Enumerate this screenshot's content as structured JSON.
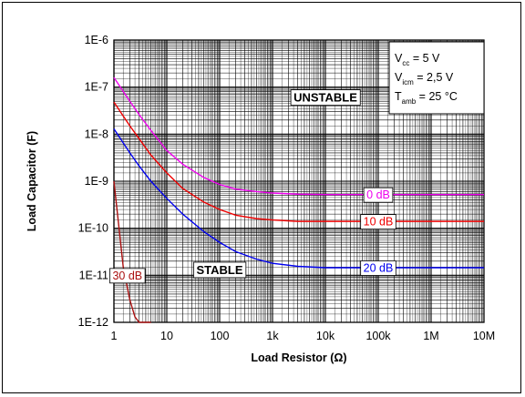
{
  "chart_data": {
    "type": "line",
    "xscale": "log",
    "yscale": "log",
    "xlim": [
      1,
      10000000
    ],
    "ylim": [
      1e-12,
      1e-06
    ],
    "grid": true,
    "xlabel": "Load Resistor (Ω)",
    "ylabel": "Load Capacitor (F)",
    "x_ticks": [
      1,
      10,
      100,
      1000,
      10000,
      100000,
      1000000,
      10000000
    ],
    "x_tick_labels": [
      "1",
      "10",
      "100",
      "1k",
      "10k",
      "100k",
      "1M",
      "10M"
    ],
    "y_ticks": [
      1e-12,
      1e-11,
      1e-10,
      1e-09,
      1e-08,
      1e-07,
      1e-06
    ],
    "y_tick_labels": [
      "1E-12",
      "1E-11",
      "1E-10",
      "1E-9",
      "1E-8",
      "1E-7",
      "1E-6"
    ],
    "conditions": {
      "vcc": {
        "sym": "V",
        "sub": "cc",
        "val": " = 5 V"
      },
      "vicm": {
        "sym": "V",
        "sub": "icm",
        "val": " = 2,5 V"
      },
      "tamb": {
        "sym": "T",
        "sub": "amb",
        "val": " = 25 °C"
      }
    },
    "regions": {
      "unstable": "UNSTABLE",
      "stable": "STABLE"
    },
    "series": [
      {
        "name": "0 dB",
        "color": "#ee00ee",
        "points": [
          [
            1,
            1.6e-07
          ],
          [
            2,
            5e-08
          ],
          [
            3,
            2.6e-08
          ],
          [
            5,
            1.2e-08
          ],
          [
            10,
            4.5e-09
          ],
          [
            20,
            2.3e-09
          ],
          [
            50,
            1.2e-09
          ],
          [
            100,
            8.5e-10
          ],
          [
            200,
            6.8e-10
          ],
          [
            500,
            6e-10
          ],
          [
            1000,
            5.6e-10
          ],
          [
            3000,
            5.3e-10
          ],
          [
            10000,
            5.2e-10
          ],
          [
            10000000,
            5.2e-10
          ]
        ]
      },
      {
        "name": "10 dB",
        "color": "#ee0000",
        "points": [
          [
            1,
            4.8e-08
          ],
          [
            2,
            1.5e-08
          ],
          [
            3,
            8e-09
          ],
          [
            5,
            3.6e-09
          ],
          [
            10,
            1.5e-09
          ],
          [
            20,
            7e-10
          ],
          [
            50,
            3.6e-10
          ],
          [
            100,
            2.5e-10
          ],
          [
            200,
            1.9e-10
          ],
          [
            500,
            1.6e-10
          ],
          [
            1000,
            1.5e-10
          ],
          [
            3000,
            1.4e-10
          ],
          [
            10000,
            1.4e-10
          ],
          [
            10000000,
            1.4e-10
          ]
        ]
      },
      {
        "name": "20 dB",
        "color": "#0000ee",
        "points": [
          [
            1,
            1.3e-08
          ],
          [
            2,
            4e-09
          ],
          [
            3,
            2.1e-09
          ],
          [
            5,
            1e-09
          ],
          [
            10,
            4.3e-10
          ],
          [
            20,
            2e-10
          ],
          [
            50,
            8.5e-11
          ],
          [
            100,
            5e-11
          ],
          [
            200,
            3.2e-11
          ],
          [
            500,
            2.2e-11
          ],
          [
            1000,
            1.8e-11
          ],
          [
            3000,
            1.55e-11
          ],
          [
            10000,
            1.45e-11
          ],
          [
            10000000,
            1.45e-11
          ]
        ]
      },
      {
        "name": "30 dB",
        "color": "#aa1111",
        "points": [
          [
            1,
            1e-09
          ],
          [
            1.5,
            1.5e-11
          ],
          [
            2,
            3e-12
          ],
          [
            2.5,
            1.3e-12
          ],
          [
            3,
            1e-12
          ],
          [
            5,
            1e-12
          ]
        ]
      }
    ],
    "label_positions": {
      "0 dB": [
        100000,
        5.2e-10
      ],
      "10 dB": [
        100000,
        1.4e-10
      ],
      "20 dB": [
        100000,
        1.45e-11
      ],
      "30 dB": [
        1.8,
        1e-11
      ]
    }
  }
}
